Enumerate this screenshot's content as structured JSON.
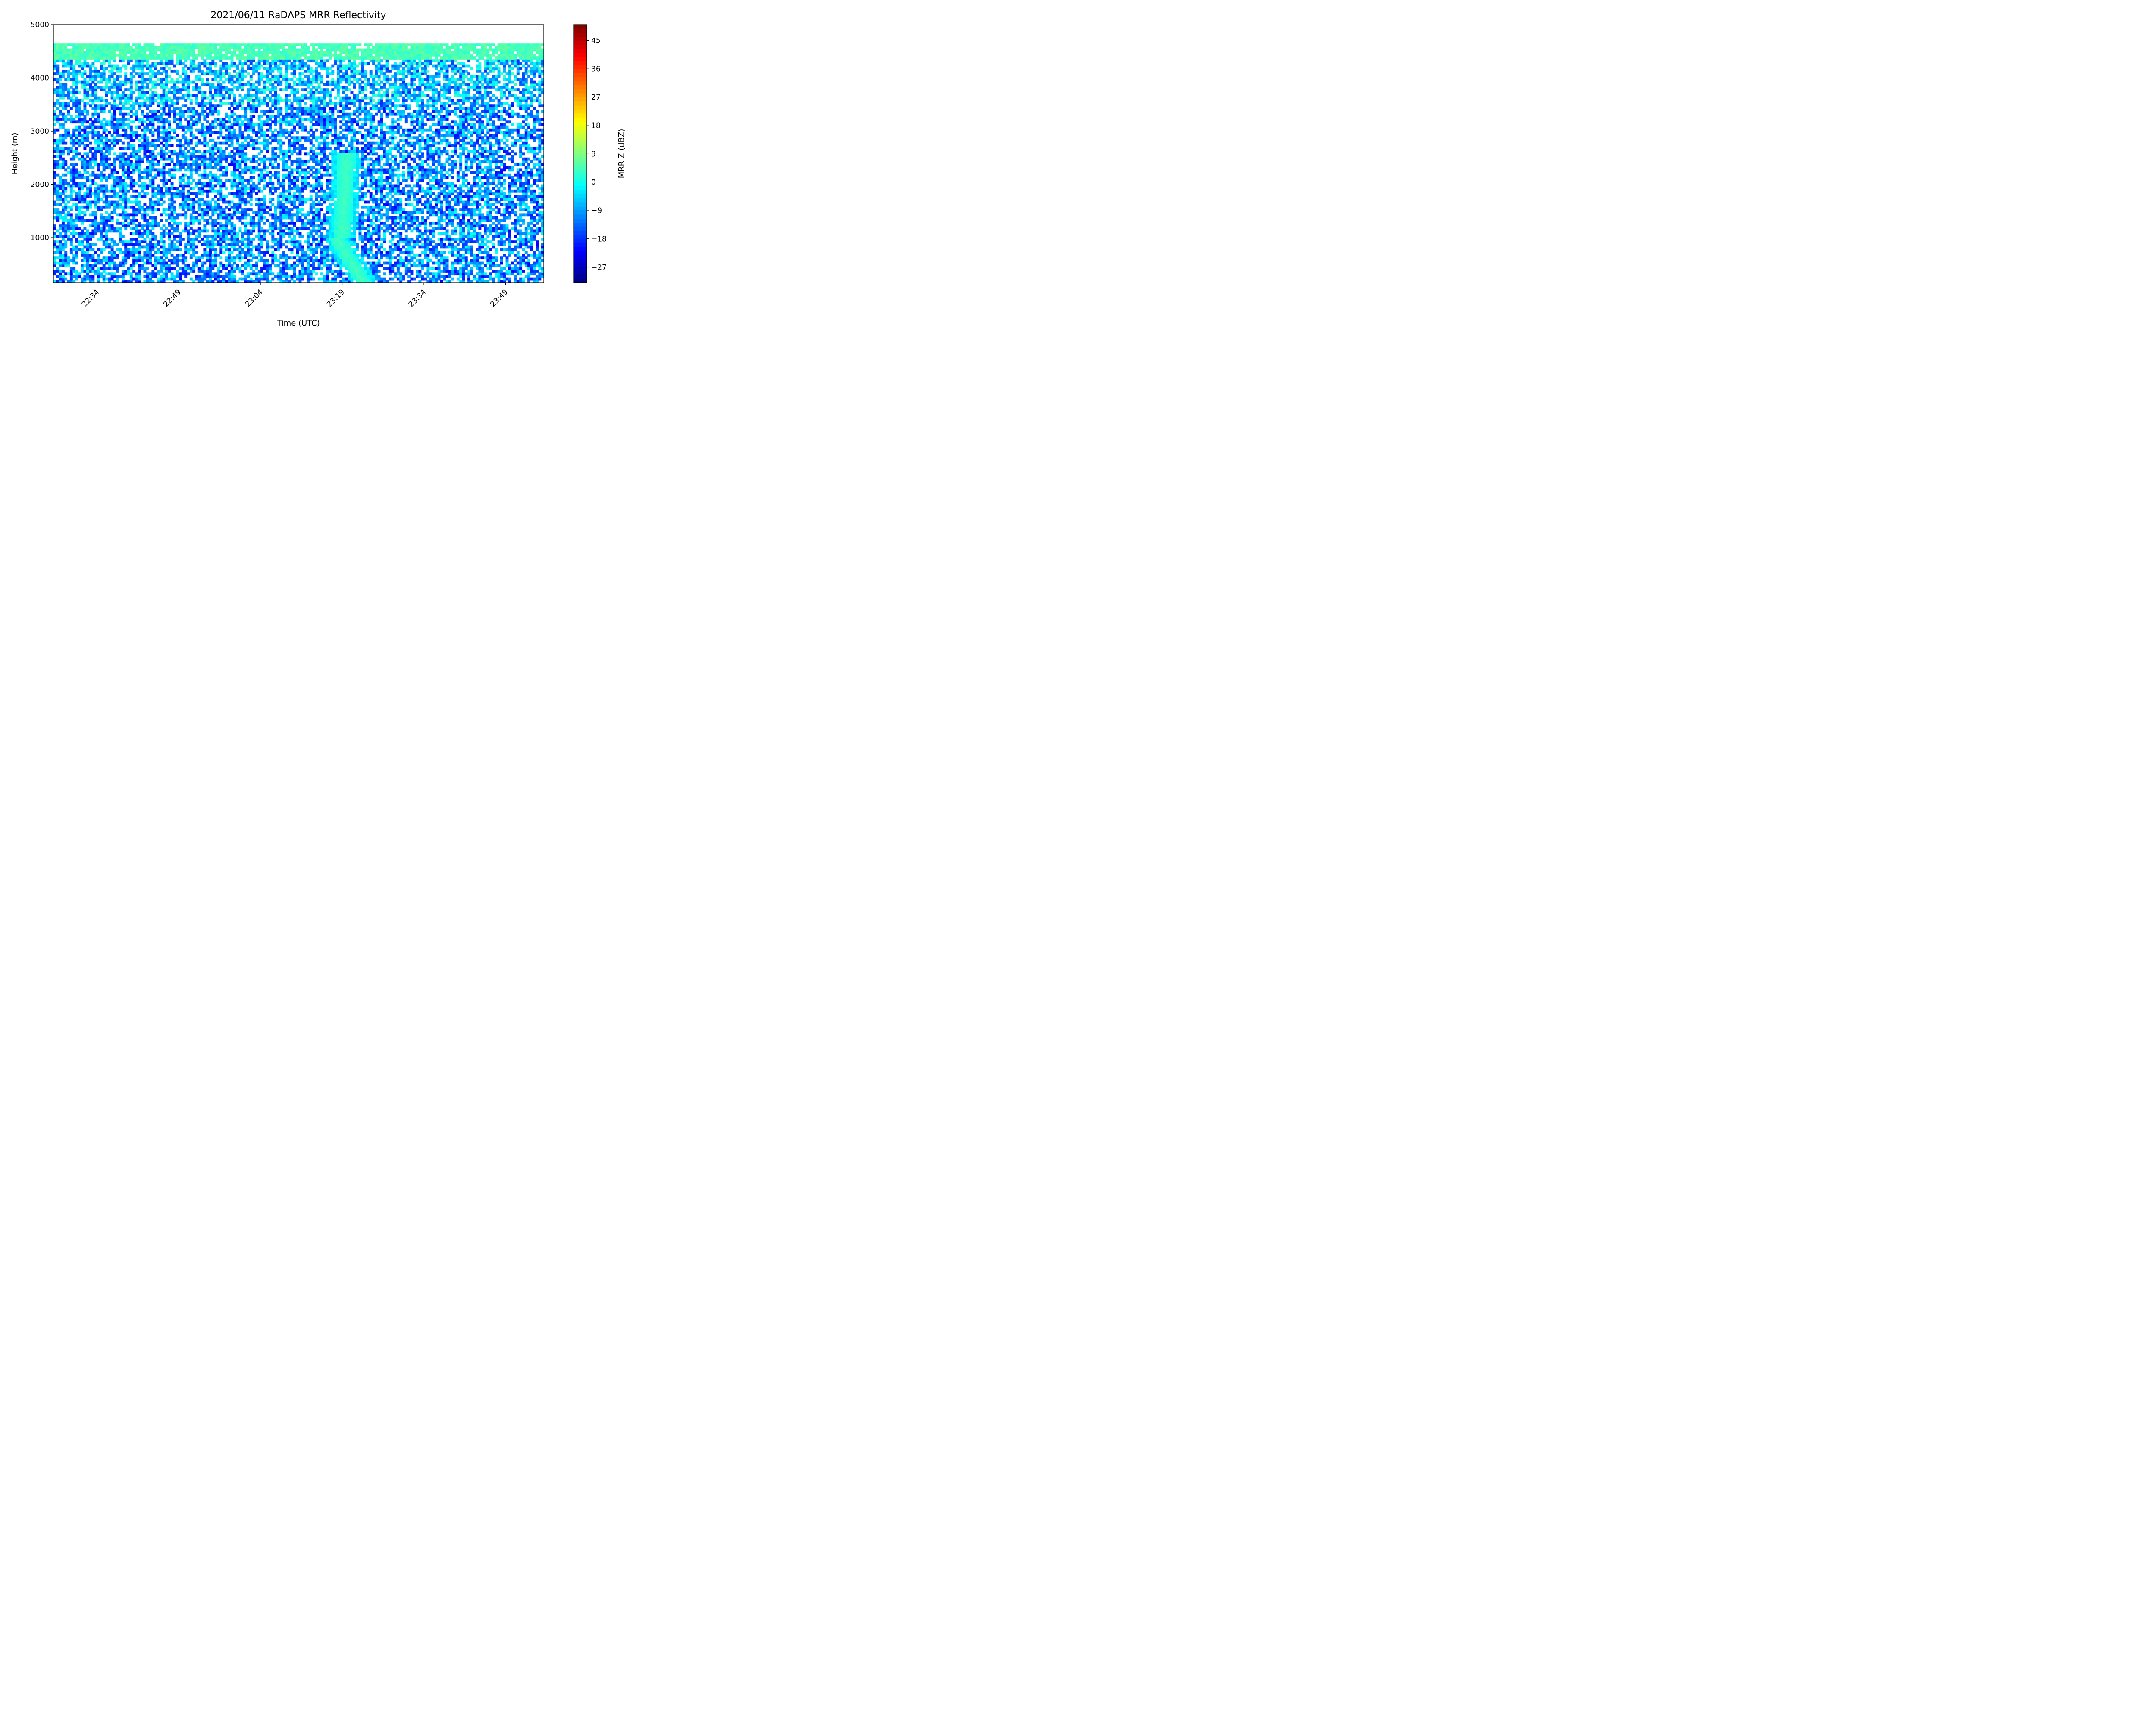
{
  "chart_data": {
    "type": "heatmap",
    "title": "2021/06/11 RaDAPS MRR Reflectivity",
    "xlabel": "Time (UTC)",
    "ylabel": "Height (m)",
    "x_range_minutes_utc": [
      "22:26",
      "23:56"
    ],
    "x_ticks": [
      "22:34",
      "22:49",
      "23:04",
      "23:19",
      "23:34",
      "23:49"
    ],
    "ylim": [
      150,
      5000
    ],
    "y_ticks": [
      1000,
      2000,
      3000,
      4000,
      5000
    ],
    "data_top_height_m": 4650,
    "colorbar": {
      "label": "MRR Z (dBZ)",
      "range": [
        -32,
        50
      ],
      "ticks": [
        -27,
        -18,
        -9,
        0,
        9,
        18,
        27,
        36,
        45
      ],
      "colormap": "jet"
    },
    "description_of_field": "Mostly -25 to 5 dBZ returns with many gaps (no echo); higher values (~5 dBZ) in a band near 4400-4650 m and in a slanted precipitation streak from about 23:18 at 1000 m to 23:23 at the ground."
  }
}
